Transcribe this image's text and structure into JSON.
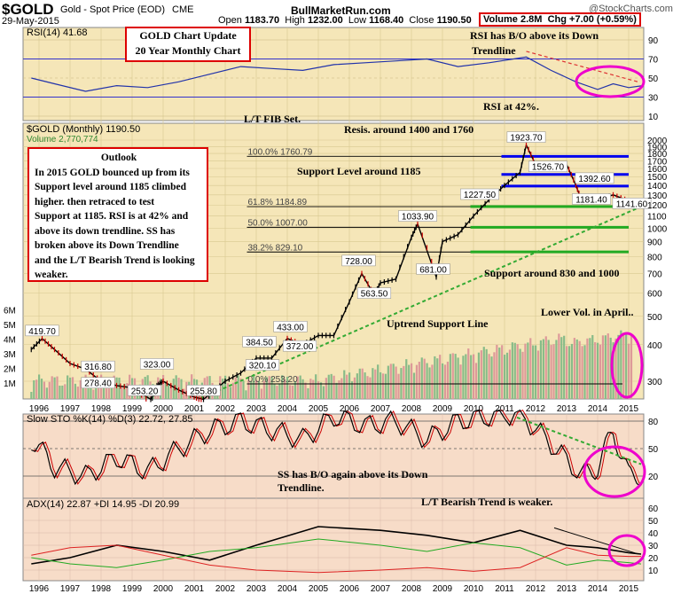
{
  "header": {
    "symbol": "$GOLD",
    "description": "Gold - Spot Price (EOD)",
    "exchange": "CME",
    "date": "29-May-2015",
    "site": "BullMarketRun.com",
    "watermark": "@StockCharts.com",
    "open_label": "Open",
    "open": "1183.70",
    "high_label": "High",
    "high": "1232.00",
    "low_label": "Low",
    "low": "1168.40",
    "close_label": "Close",
    "close": "1190.50",
    "volume_label": "Volume",
    "volume": "2.8M",
    "chg_label": "Chg",
    "chg": "+7.00 (+0.59%)"
  },
  "title_box": {
    "line1": "GOLD Chart Update",
    "line2": "20 Year Monthly Chart"
  },
  "outlook": {
    "title": "Outlook",
    "lines": [
      "In 2015 GOLD bounced up from its",
      "Support level around 1185  climbed",
      "higher. then retraced to test",
      "Support at 1185. RSI is at 42% and",
      "above its down trendline. SS has",
      "broken above its Down Trendline",
      "and the L/T Bearish Trend is looking",
      "weaker."
    ]
  },
  "annotations": {
    "rsi_bo": "RSI has B/O above its Down",
    "rsi_bo2": "Trendline",
    "rsi_42": "RSI at 42%.",
    "lt_fib": "L/T FIB Set.",
    "resis": "Resis. around 1400 and 1760",
    "support_1185": "Support Level around 1185",
    "support_830": "Support around 830 and 1000",
    "uptrend": "Uptrend Support Line",
    "lower_vol": "Lower Vol. in April..",
    "ss_bo": "SS has B/O again above its Down",
    "ss_bo2": "Trendline.",
    "lt_bear": "L/T Bearish Trend is weaker."
  },
  "colors": {
    "panel_bg": "#f5e6b8",
    "osc_bg": "#f7dcc8",
    "blue_line": "#0000ee",
    "green_line": "#22aa22",
    "annotation_box": "#dd0000",
    "ellipse": "#ee00cc",
    "uptrend": "#33aa33",
    "up_bar": "#000000",
    "down_bar": "#cc0000"
  },
  "chart_data": [
    {
      "type": "line",
      "title": "RSI(14) 41.68",
      "series": [
        {
          "name": "RSI(14)",
          "x": [
            1995.75,
            1996.5,
            1997.5,
            1998.5,
            1999.5,
            2000.5,
            2001.5,
            2002.5,
            2003.5,
            2004.5,
            2005.5,
            2006.5,
            2007.5,
            2008.5,
            2009.5,
            2010.5,
            2011.7,
            2012.5,
            2013.3,
            2014.0,
            2014.5,
            2015.0,
            2015.4
          ],
          "y": [
            50,
            44,
            36,
            42,
            40,
            46,
            54,
            62,
            60,
            58,
            64,
            66,
            68,
            70,
            62,
            66,
            72,
            58,
            46,
            38,
            44,
            40,
            41.68
          ]
        }
      ],
      "yticks": [
        10,
        30,
        50,
        70,
        90
      ],
      "ylim": [
        0,
        100
      ],
      "trendline_x": [
        2011.7,
        2015.3
      ],
      "trendline_y": [
        78,
        46
      ]
    },
    {
      "type": "line",
      "title": "$GOLD (Monthly) 1190.50",
      "volume_label": "Volume 2,770,774",
      "series": [
        {
          "name": "$GOLD (Monthly)",
          "x": [
            1995.75,
            1996.1,
            1996.5,
            1997.0,
            1997.5,
            1998.0,
            1998.5,
            1999.0,
            1999.6,
            1999.8,
            2000.0,
            2000.5,
            2001.0,
            2001.3,
            2002.0,
            2002.5,
            2003.0,
            2003.5,
            2004.0,
            2004.5,
            2005.0,
            2005.5,
            2006.0,
            2006.4,
            2006.8,
            2007.0,
            2007.5,
            2008.0,
            2008.2,
            2008.8,
            2009.0,
            2009.5,
            2010.0,
            2010.5,
            2011.0,
            2011.5,
            2011.7,
            2012.0,
            2012.5,
            2013.0,
            2013.3,
            2013.5,
            2014.0,
            2014.5,
            2015.0,
            2015.4
          ],
          "y": [
            385,
            419.7,
            385,
            345,
            330,
            300,
            290,
            285,
            253.2,
            290,
            300,
            280,
            265,
            255.8,
            300,
            320,
            360,
            360,
            420,
            400,
            430,
            430,
            560,
            700,
            590,
            650,
            670,
            930,
            1033.9,
            681,
            900,
            950,
            1100,
            1250,
            1400,
            1550,
            1923.7,
            1650,
            1600,
            1650,
            1400,
            1230,
            1250,
            1300,
            1240,
            1190.5
          ]
        }
      ],
      "price_labels": [
        {
          "text": "419.70",
          "x": 1996.1,
          "y": 419.7
        },
        {
          "text": "316.80",
          "x": 1997.9,
          "y": 316.8
        },
        {
          "text": "278.40",
          "x": 1997.9,
          "y": 278.4
        },
        {
          "text": "323.00",
          "x": 1999.8,
          "y": 323
        },
        {
          "text": "253.20",
          "x": 1999.4,
          "y": 253.2
        },
        {
          "text": "255.80",
          "x": 2001.3,
          "y": 255.8
        },
        {
          "text": "384.50",
          "x": 2003.1,
          "y": 384.5
        },
        {
          "text": "320.10",
          "x": 2003.2,
          "y": 320.1
        },
        {
          "text": "433.00",
          "x": 2004.1,
          "y": 433
        },
        {
          "text": "372.00",
          "x": 2004.4,
          "y": 372
        },
        {
          "text": "728.00",
          "x": 2006.3,
          "y": 728
        },
        {
          "text": "563.50",
          "x": 2006.8,
          "y": 563.5
        },
        {
          "text": "1033.90",
          "x": 2008.2,
          "y": 1033.9
        },
        {
          "text": "681.00",
          "x": 2008.7,
          "y": 681
        },
        {
          "text": "1227.50",
          "x": 2010.2,
          "y": 1227.5
        },
        {
          "text": "1923.70",
          "x": 2011.7,
          "y": 1923.7
        },
        {
          "text": "1526.70",
          "x": 2012.4,
          "y": 1526.7
        },
        {
          "text": "1392.60",
          "x": 2013.9,
          "y": 1392.6
        },
        {
          "text": "1181.40",
          "x": 2013.8,
          "y": 1181.4
        },
        {
          "text": "1141.60",
          "x": 2015.1,
          "y": 1141.6
        }
      ],
      "fib_levels": [
        {
          "label": "100.0% 1760.79",
          "value": 1760.79
        },
        {
          "label": "61.8% 1184.89",
          "value": 1184.89
        },
        {
          "label": "50.0% 1007.00",
          "value": 1007
        },
        {
          "label": "38.2% 829.10",
          "value": 829.1
        },
        {
          "label": "0.0% 253.20",
          "value": 253.2
        }
      ],
      "resistance_levels": [
        1760,
        1526.7,
        1392.6
      ],
      "support_levels": [
        1185,
        1007,
        830
      ],
      "yticks": [
        300,
        400,
        500,
        600,
        700,
        800,
        900,
        1000,
        1100,
        1200,
        1300,
        1400,
        1500,
        1600,
        1700,
        1800,
        1900,
        2000
      ],
      "volume_ticks": [
        "1M",
        "2M",
        "3M",
        "4M",
        "5M",
        "6M"
      ],
      "y_scale": "log"
    },
    {
      "type": "line",
      "title": "Slow STO %K(14) %D(3) 22.72, 27.85",
      "series": [
        {
          "name": "%K(14)",
          "x": [
            1995.75,
            1996.5,
            1997.5,
            1998.5,
            1999.5,
            2000.5,
            2001.5,
            2002.5,
            2003.5,
            2004.5,
            2005.5,
            2006.5,
            2007.5,
            2008.5,
            2009.5,
            2010.5,
            2011.5,
            2012.5,
            2013.5,
            2014.0,
            2014.5,
            2015.0,
            2015.4
          ],
          "y": [
            60,
            30,
            20,
            40,
            25,
            50,
            70,
            80,
            70,
            60,
            85,
            75,
            80,
            60,
            80,
            85,
            88,
            55,
            20,
            30,
            70,
            20,
            22.72
          ]
        }
      ],
      "yticks": [
        20,
        50,
        80
      ],
      "ylim": [
        0,
        100
      ]
    },
    {
      "type": "line",
      "title": "ADX(14) 22.87 +DI 14.95 -DI 20.99",
      "series": [
        {
          "name": "ADX(14)",
          "x": [
            1995.75,
            1997,
            1998.5,
            2000,
            2001.5,
            2003,
            2005,
            2007,
            2008.5,
            2010,
            2011.5,
            2013,
            2014,
            2015,
            2015.4
          ],
          "y": [
            15,
            20,
            30,
            25,
            18,
            30,
            45,
            42,
            38,
            32,
            42,
            30,
            28,
            24,
            22.87
          ]
        },
        {
          "name": "+DI",
          "x": [
            1995.75,
            1997,
            1998.5,
            2000,
            2001.5,
            2003,
            2005,
            2007,
            2008.5,
            2010,
            2011.5,
            2013,
            2014,
            2015,
            2015.4
          ],
          "y": [
            20,
            15,
            12,
            18,
            25,
            28,
            35,
            30,
            25,
            32,
            28,
            14,
            18,
            16,
            14.95
          ]
        },
        {
          "name": "-DI",
          "x": [
            1995.75,
            1997,
            1998.5,
            2000,
            2001.5,
            2003,
            2005,
            2007,
            2008.5,
            2010,
            2011.5,
            2013,
            2014,
            2015,
            2015.4
          ],
          "y": [
            22,
            28,
            30,
            22,
            14,
            10,
            8,
            10,
            12,
            9,
            12,
            28,
            22,
            21,
            20.99
          ]
        }
      ],
      "yticks": [
        10,
        20,
        30,
        40,
        50,
        60
      ],
      "ylim": [
        0,
        65
      ]
    }
  ],
  "x_axis": {
    "years": [
      "1996",
      "1997",
      "1998",
      "1999",
      "2000",
      "2001",
      "2002",
      "2003",
      "2004",
      "2005",
      "2006",
      "2007",
      "2008",
      "2009",
      "2010",
      "2011",
      "2012",
      "2013",
      "2014",
      "2015"
    ]
  }
}
